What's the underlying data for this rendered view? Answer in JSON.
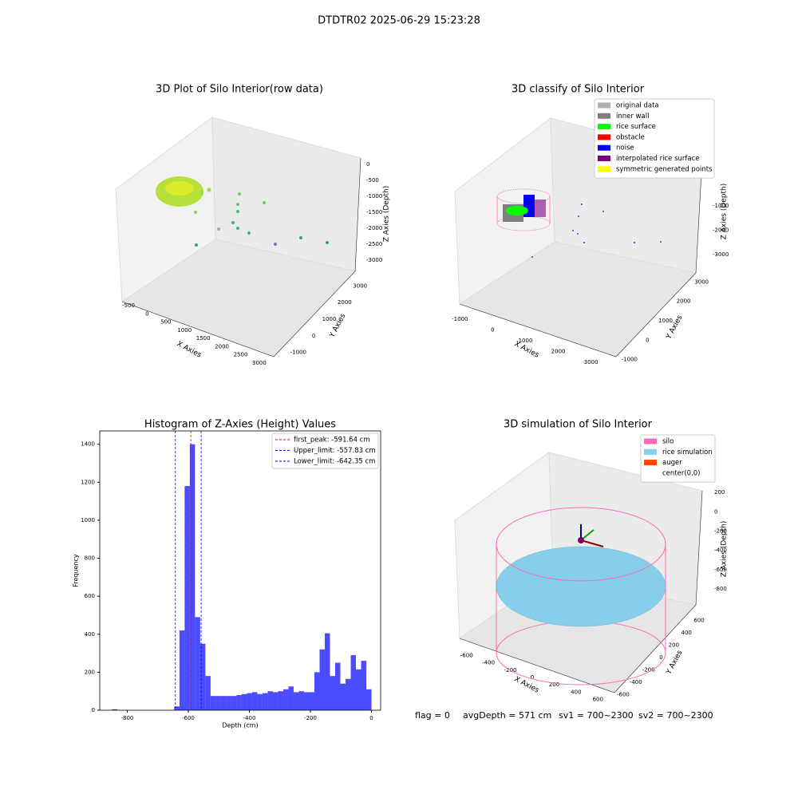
{
  "title": "DTDTR02 2025-06-29 15:23:28",
  "chart_data": [
    {
      "type": "scatter3d",
      "title": "3D Plot of Silo Interior(row data)",
      "xlabel": "X Axies",
      "ylabel": "Y Axies",
      "zlabel": "Z Axies (Depth)",
      "xlim": [
        -700,
        3300
      ],
      "xticks": [
        -500,
        0,
        500,
        1000,
        1500,
        2000,
        2500,
        3000
      ],
      "ylim": [
        -1300,
        3300
      ],
      "yticks": [
        -1000,
        0,
        1000,
        2000,
        3000
      ],
      "zlim": [
        -3300,
        200
      ],
      "zticks": [
        0,
        -500,
        -1000,
        -1500,
        -2000,
        -2500,
        -3000
      ]
    },
    {
      "type": "scatter3d",
      "title": "3D classify of Silo Interior",
      "xlabel": "X Axies",
      "ylabel": "Y Axies",
      "zlabel": "Z Axies (Depth)",
      "xlim": [
        -1300,
        3300
      ],
      "xticks": [
        -1000,
        0,
        1000,
        2000,
        3000
      ],
      "ylim": [
        -1300,
        3300
      ],
      "yticks": [
        -1000,
        0,
        1000,
        2000,
        3000
      ],
      "zlim": [
        -3300,
        -700
      ],
      "zticks": [
        -1000,
        -2000,
        -3000
      ],
      "legend": [
        {
          "name": "original data",
          "color": "#b0b0b0"
        },
        {
          "name": "inner wall",
          "color": "#808080"
        },
        {
          "name": "rice surface",
          "color": "#00ff00"
        },
        {
          "name": "obstacle",
          "color": "#ff0000"
        },
        {
          "name": "noise",
          "color": "#0000ff"
        },
        {
          "name": "interpolated rice surface",
          "color": "#800080"
        },
        {
          "name": "symmetric generated points",
          "color": "#ffff00"
        }
      ]
    },
    {
      "type": "histogram",
      "title": "Histogram of Z-Axies (Height) Values",
      "xlabel": "Depth (cm)",
      "ylabel": "Frequency",
      "color": "#0000ff",
      "bins": [
        -850,
        -833,
        -816,
        -799,
        -782,
        -765,
        -748,
        -731,
        -714,
        -697,
        -680,
        -663,
        -646,
        -629,
        -612,
        -595,
        -578,
        -561,
        -544,
        -527,
        -510,
        -493,
        -476,
        -459,
        -442,
        -425,
        -408,
        -391,
        -374,
        -357,
        -340,
        -323,
        -306,
        -289,
        -272,
        -255,
        -238,
        -221,
        -204,
        -187,
        -170,
        -153,
        -136,
        -119,
        -102,
        -85,
        -68,
        -51,
        -34,
        -17,
        0
      ],
      "values": [
        5,
        0,
        0,
        0,
        0,
        0,
        0,
        0,
        0,
        0,
        0,
        0,
        20,
        420,
        1180,
        1400,
        490,
        350,
        180,
        75,
        75,
        75,
        75,
        75,
        80,
        85,
        90,
        95,
        85,
        90,
        100,
        95,
        100,
        110,
        125,
        95,
        100,
        95,
        95,
        200,
        320,
        405,
        180,
        250,
        140,
        165,
        290,
        215,
        260,
        110
      ],
      "xlim": [
        -890,
        30
      ],
      "xticks": [
        -800,
        -600,
        -400,
        -200,
        0
      ],
      "ylim": [
        0,
        1470
      ],
      "yticks": [
        0,
        200,
        400,
        600,
        800,
        1000,
        1200,
        1400
      ],
      "vlines": [
        {
          "value": -591.64,
          "label": "first_peak: -591.64 cm",
          "color": "#ff0000"
        },
        {
          "value": -557.83,
          "label": "Upper_limit: -557.83 cm",
          "color": "#0000ff"
        },
        {
          "value": -642.35,
          "label": "Lower_limit: -642.35 cm",
          "color": "#0000ff"
        }
      ],
      "legend": "upper right"
    },
    {
      "type": "surface3d",
      "title": "3D simulation of Silo Interior",
      "xlabel": "X Axies",
      "ylabel": "Y Axies",
      "zlabel": "Z Axies (Depth)",
      "xlim": [
        -700,
        700
      ],
      "xticks": [
        -600,
        -400,
        -200,
        0,
        200,
        400,
        600
      ],
      "ylim": [
        -700,
        700
      ],
      "yticks": [
        -600,
        -400,
        -200,
        0,
        200,
        400,
        600
      ],
      "zlim": [
        -900,
        300
      ],
      "zticks": [
        200,
        0,
        -200,
        -400,
        -600,
        -800
      ],
      "legend": [
        {
          "name": "silo",
          "color": "#ff69b4"
        },
        {
          "name": "rice simulation",
          "color": "#87ceeb"
        },
        {
          "name": "auger",
          "color": "#ff4500"
        },
        {
          "name": "center(0,0)",
          "color": "#ffffff"
        }
      ]
    }
  ],
  "footer": {
    "flag": "flag = 0",
    "avg": "avgDepth = 571 cm",
    "sv1": "sv1 = 700~2300",
    "sv2": "sv2 = 700~2300"
  }
}
